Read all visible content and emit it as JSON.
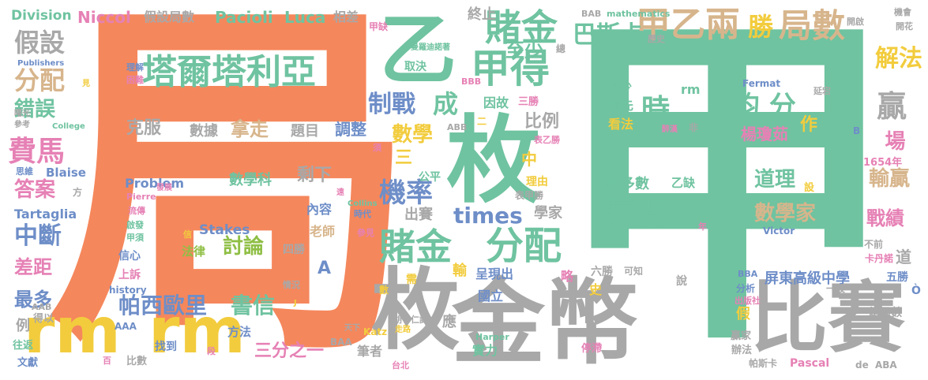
{
  "palette": {
    "orange": "#f5875c",
    "green": "#6fc3a0",
    "gray": "#a8a8a8",
    "yellow": "#f2cc3d",
    "blue": "#6e8ec8",
    "pink": "#e681b5",
    "lime": "#8fbf45",
    "tan": "#d7b58c"
  },
  "words": [
    {
      "text": "局",
      "color": "orange"
    },
    {
      "text": "甲",
      "color": "green"
    },
    {
      "text": "枚",
      "color": "green"
    },
    {
      "text": "金幣",
      "color": "gray"
    },
    {
      "text": "乙",
      "color": "green"
    },
    {
      "text": "枚",
      "color": "gray"
    },
    {
      "text": "比賽",
      "color": "gray"
    },
    {
      "text": "rm",
      "color": "yellow"
    },
    {
      "text": "rm",
      "color": "yellow"
    },
    {
      "text": "塔爾塔利亞",
      "color": "green"
    },
    {
      "text": "甲得",
      "color": "green"
    },
    {
      "text": "賭金",
      "color": "green"
    },
    {
      "text": "甲乙兩",
      "color": "tan"
    },
    {
      "text": "勝",
      "color": "yellow"
    },
    {
      "text": "局數",
      "color": "tan"
    },
    {
      "text": "巴斯卡",
      "color": "green"
    },
    {
      "text": "賭金",
      "color": "green"
    },
    {
      "text": "分配",
      "color": "green"
    },
    {
      "text": "贏得",
      "color": "green"
    },
    {
      "text": "機率",
      "color": "blue"
    },
    {
      "text": "時",
      "color": "green"
    },
    {
      "text": "均 分",
      "color": "green"
    },
    {
      "text": "費馬",
      "color": "pink"
    },
    {
      "text": "分配",
      "color": "tan"
    },
    {
      "text": "假設",
      "color": "gray"
    },
    {
      "text": "解法",
      "color": "yellow"
    },
    {
      "text": "贏",
      "color": "gray"
    },
    {
      "text": "times",
      "color": "blue"
    },
    {
      "text": "制戰",
      "color": "blue"
    },
    {
      "text": "成",
      "color": "green"
    },
    {
      "text": "帕西歐里",
      "color": "blue"
    },
    {
      "text": "書信",
      "color": "green"
    },
    {
      "text": "討論",
      "color": "lime"
    },
    {
      "text": "數學",
      "color": "yellow"
    },
    {
      "text": "數學家",
      "color": "tan"
    },
    {
      "text": "道理",
      "color": "green"
    },
    {
      "text": "中斷",
      "color": "blue"
    },
    {
      "text": "錯誤",
      "color": "green"
    },
    {
      "text": "答案",
      "color": "pink"
    },
    {
      "text": "克服",
      "color": "gray"
    },
    {
      "text": "數據",
      "color": "gray"
    },
    {
      "text": "拿走",
      "color": "tan"
    },
    {
      "text": "題目",
      "color": "gray"
    },
    {
      "text": "調整",
      "color": "blue"
    },
    {
      "text": "場",
      "color": "pink"
    },
    {
      "text": "比例",
      "color": "gray"
    },
    {
      "text": "至少",
      "color": "green"
    },
    {
      "text": "終止",
      "color": "gray"
    },
    {
      "text": "輸贏",
      "color": "tan"
    },
    {
      "text": "戰績",
      "color": "pink"
    },
    {
      "text": "楊瓊茹",
      "color": "pink"
    },
    {
      "text": "作",
      "color": "yellow"
    },
    {
      "text": "三分之一",
      "color": "pink"
    },
    {
      "text": "剩下",
      "color": "gray"
    },
    {
      "text": "差距",
      "color": "pink"
    },
    {
      "text": "最多",
      "color": "blue"
    },
    {
      "text": "許多數",
      "color": "green"
    },
    {
      "text": "乙缺",
      "color": "green"
    },
    {
      "text": "數學科",
      "color": "green"
    },
    {
      "text": "Pacioli",
      "color": "green"
    },
    {
      "text": "Luca",
      "color": "green"
    },
    {
      "text": "Division",
      "color": "green"
    },
    {
      "text": "Niccol",
      "color": "pink"
    },
    {
      "text": "假設局數",
      "color": "gray"
    },
    {
      "text": "相差",
      "color": "gray"
    },
    {
      "text": "Problem",
      "color": "blue"
    },
    {
      "text": "Stakes",
      "color": "blue"
    },
    {
      "text": "法律",
      "color": "lime"
    },
    {
      "text": "Tartaglia",
      "color": "blue"
    },
    {
      "text": "Blaise",
      "color": "blue"
    },
    {
      "text": "屏東高級中學",
      "color": "blue"
    },
    {
      "text": "五勝",
      "color": "blue"
    },
    {
      "text": "總局數",
      "color": "gray"
    },
    {
      "text": "1654年",
      "color": "pink"
    },
    {
      "text": "卡丹諾",
      "color": "pink"
    },
    {
      "text": "Pascal",
      "color": "pink"
    },
    {
      "text": "帕斯卡",
      "color": "gray"
    },
    {
      "text": "ABA",
      "color": "gray"
    },
    {
      "text": "de",
      "color": "gray"
    },
    {
      "text": "領先",
      "color": "green"
    },
    {
      "text": "看法",
      "color": "yellow"
    },
    {
      "text": "缺少",
      "color": "green"
    },
    {
      "text": "rm",
      "color": "green"
    },
    {
      "text": "因故",
      "color": "green"
    },
    {
      "text": "三勝",
      "color": "pink"
    },
    {
      "text": "公平",
      "color": "green"
    },
    {
      "text": "中",
      "color": "yellow"
    },
    {
      "text": "三",
      "color": "yellow"
    },
    {
      "text": "出賽",
      "color": "gray"
    },
    {
      "text": "學家",
      "color": "gray"
    },
    {
      "text": "理由",
      "color": "yellow"
    },
    {
      "text": "表甲勝",
      "color": "gray"
    },
    {
      "text": "內容",
      "color": "blue"
    },
    {
      "text": "老師",
      "color": "tan"
    },
    {
      "text": "A",
      "color": "blue"
    },
    {
      "text": "四勝",
      "color": "gray"
    },
    {
      "text": "輸",
      "color": "yellow"
    },
    {
      "text": "呈現出",
      "color": "blue"
    },
    {
      "text": "國立",
      "color": "blue"
    },
    {
      "text": "略",
      "color": "pink"
    },
    {
      "text": "實力",
      "color": "green"
    },
    {
      "text": "筆者",
      "color": "gray"
    },
    {
      "text": "應",
      "color": "gray"
    },
    {
      "text": "方法",
      "color": "blue"
    },
    {
      "text": "找到",
      "color": "blue"
    },
    {
      "text": "比數",
      "color": "gray"
    },
    {
      "text": "文獻",
      "color": "blue"
    },
    {
      "text": "往返",
      "color": "green"
    },
    {
      "text": "得以",
      "color": "gray"
    },
    {
      "text": "例",
      "color": "gray"
    },
    {
      "text": "上訴",
      "color": "pink"
    },
    {
      "text": "信心",
      "color": "blue"
    },
    {
      "text": "history",
      "color": "blue"
    },
    {
      "text": "AAA",
      "color": "blue"
    },
    {
      "text": "BAA",
      "color": "gray"
    },
    {
      "text": "Katz",
      "color": "yellow"
    },
    {
      "text": "Harper",
      "color": "green"
    },
    {
      "text": "停滯",
      "color": "pink"
    },
    {
      "text": "贏家",
      "color": "gray"
    },
    {
      "text": "辦法",
      "color": "gray"
    },
    {
      "text": "假",
      "color": "yellow"
    },
    {
      "text": "分析",
      "color": "blue"
    },
    {
      "text": "出版社",
      "color": "pink"
    },
    {
      "text": "BBA",
      "color": "blue"
    },
    {
      "text": "六勝",
      "color": "gray"
    },
    {
      "text": "可知",
      "color": "gray"
    },
    {
      "text": "說",
      "color": "gray"
    },
    {
      "text": "一段",
      "color": "gray"
    },
    {
      "text": "史",
      "color": "yellow"
    },
    {
      "text": "需",
      "color": "yellow"
    },
    {
      "text": "數",
      "color": "yellow"
    },
    {
      "text": "Victor",
      "color": "blue"
    },
    {
      "text": "年",
      "color": "pink"
    },
    {
      "text": "不前",
      "color": "gray"
    },
    {
      "text": "Fermat",
      "color": "blue"
    },
    {
      "text": "延宕",
      "color": "gray"
    },
    {
      "text": "BAB",
      "color": "gray"
    },
    {
      "text": "mathematics",
      "color": "green"
    },
    {
      "text": "開啟",
      "color": "gray"
    },
    {
      "text": "機會",
      "color": "gray"
    },
    {
      "text": "開花",
      "color": "gray"
    },
    {
      "text": "甲缺",
      "color": "pink"
    },
    {
      "text": "總",
      "color": "gray"
    },
    {
      "text": "曼羅迪諾著",
      "color": "green"
    },
    {
      "text": "歷史",
      "color": "gray"
    },
    {
      "text": "理解",
      "color": "blue"
    },
    {
      "text": "困難",
      "color": "pink"
    },
    {
      "text": "取決",
      "color": "green"
    },
    {
      "text": "Publishers",
      "color": "blue"
    },
    {
      "text": "見",
      "color": "yellow"
    },
    {
      "text": "曙光",
      "color": "gray"
    },
    {
      "text": "參考",
      "color": "gray"
    },
    {
      "text": "College",
      "color": "green"
    },
    {
      "text": "思維",
      "color": "blue"
    },
    {
      "text": "方",
      "color": "gray"
    },
    {
      "text": "Pierre",
      "color": "pink"
    },
    {
      "text": "流傳",
      "color": "pink"
    },
    {
      "text": "啟發",
      "color": "green"
    },
    {
      "text": "甲須",
      "color": "green"
    },
    {
      "text": "信",
      "color": "yellow"
    },
    {
      "text": "發展",
      "color": "pink"
    },
    {
      "text": "Collins",
      "color": "green"
    },
    {
      "text": "時代",
      "color": "blue"
    },
    {
      "text": "參見",
      "color": "pink"
    },
    {
      "text": "表乙勝",
      "color": "pink"
    },
    {
      "text": "非",
      "color": "gray"
    },
    {
      "text": "醉漢",
      "color": "pink"
    },
    {
      "text": "BBB",
      "color": "pink"
    },
    {
      "text": "ABB",
      "color": "gray"
    },
    {
      "text": "胡守仁譯",
      "color": "gray"
    },
    {
      "text": "台北",
      "color": "pink"
    },
    {
      "text": "情況",
      "color": "gray"
    },
    {
      "text": "AAB",
      "color": "gray"
    },
    {
      "text": "B",
      "color": "blue"
    },
    {
      "text": "天下",
      "color": "gray"
    },
    {
      "text": "走路",
      "color": "yellow"
    },
    {
      "text": "須",
      "color": "pink"
    },
    {
      "text": "二",
      "color": "yellow"
    },
    {
      "text": "段",
      "color": "pink"
    },
    {
      "text": "遠",
      "color": "pink"
    },
    {
      "text": "設",
      "color": "yellow"
    },
    {
      "text": "道",
      "color": "gray"
    },
    {
      "text": "百",
      "color": "pink"
    },
    {
      "text": "J",
      "color": "yellow"
    },
    {
      "text": "Ò",
      "color": "blue"
    }
  ]
}
